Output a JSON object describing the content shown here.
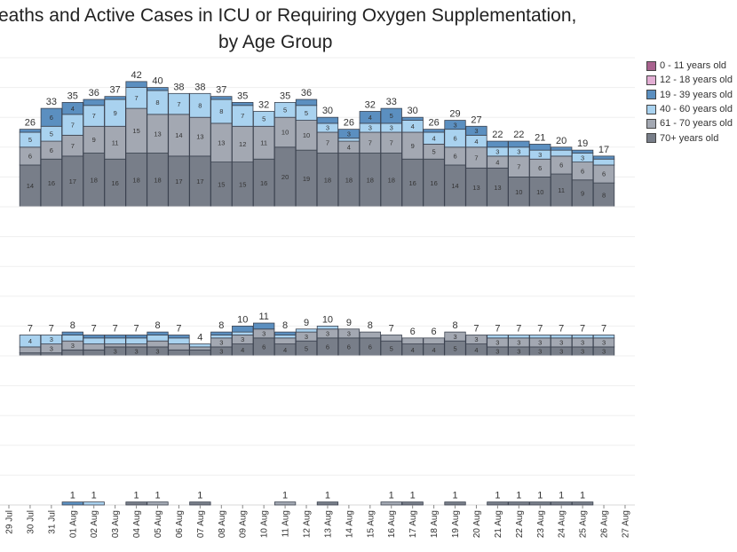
{
  "title": {
    "line1": "eaths and Active Cases in ICU or Requiring Oxygen Supplementation,",
    "line2": "by Age Group"
  },
  "legend": [
    {
      "label": "0 - 11 years old",
      "color": "#a8628e"
    },
    {
      "label": "12 - 18 years old",
      "color": "#e2aed3"
    },
    {
      "label": "19 - 39 years old",
      "color": "#5b8fc0"
    },
    {
      "label": "40 - 60 years old",
      "color": "#a9d2ef"
    },
    {
      "label": "61 - 70 years old",
      "color": "#a3a8b2"
    },
    {
      "label": "70+ years old",
      "color": "#787e89"
    }
  ],
  "chart_data": [
    {
      "type": "bar",
      "stacked": true,
      "panel": "top",
      "ylim": [
        0,
        50
      ],
      "grid": true,
      "categories": [
        "30 Jul",
        "31 Jul",
        "01 Aug",
        "02 Aug",
        "03 Aug",
        "04 Aug",
        "05 Aug",
        "06 Aug",
        "07 Aug",
        "08 Aug",
        "09 Aug",
        "10 Aug",
        "11 Aug",
        "12 Aug",
        "13 Aug",
        "14 Aug",
        "15 Aug",
        "16 Aug",
        "17 Aug",
        "18 Aug",
        "19 Aug",
        "20 Aug",
        "21 Aug",
        "22 Aug",
        "23 Aug",
        "24 Aug",
        "25 Aug",
        "26 Aug"
      ],
      "series": [
        {
          "name": "70+ years old",
          "values": [
            14,
            16,
            17,
            18,
            16,
            18,
            18,
            17,
            17,
            15,
            15,
            16,
            20,
            19,
            18,
            18,
            18,
            18,
            16,
            16,
            14,
            13,
            13,
            10,
            10,
            11,
            9,
            8
          ]
        },
        {
          "name": "61 - 70 years old",
          "values": [
            6,
            6,
            7,
            9,
            11,
            15,
            13,
            14,
            13,
            13,
            12,
            11,
            10,
            10,
            7,
            4,
            7,
            7,
            9,
            5,
            6,
            7,
            4,
            7,
            6,
            6,
            6,
            6
          ]
        },
        {
          "name": "40 - 60 years old",
          "values": [
            5,
            5,
            7,
            7,
            9,
            7,
            8,
            7,
            8,
            8,
            7,
            5,
            5,
            5,
            3,
            1,
            3,
            3,
            4,
            4,
            6,
            4,
            3,
            3,
            3,
            2,
            3,
            2
          ]
        },
        {
          "name": "19 - 39 years old",
          "values": [
            1,
            6,
            4,
            2,
            1,
            2,
            1,
            0,
            0,
            1,
            1,
            0,
            0,
            2,
            2,
            3,
            4,
            5,
            1,
            1,
            3,
            3,
            2,
            2,
            2,
            1,
            1,
            1
          ]
        }
      ]
    },
    {
      "type": "bar",
      "stacked": true,
      "panel": "middle",
      "ylim": [
        0,
        50
      ],
      "grid": true,
      "categories": [
        "30 Jul",
        "31 Jul",
        "01 Aug",
        "02 Aug",
        "03 Aug",
        "04 Aug",
        "05 Aug",
        "06 Aug",
        "07 Aug",
        "08 Aug",
        "09 Aug",
        "10 Aug",
        "11 Aug",
        "12 Aug",
        "13 Aug",
        "14 Aug",
        "15 Aug",
        "16 Aug",
        "17 Aug",
        "18 Aug",
        "19 Aug",
        "20 Aug",
        "21 Aug",
        "22 Aug",
        "23 Aug",
        "24 Aug",
        "25 Aug",
        "26 Aug"
      ],
      "series": [
        {
          "name": "70+ years old",
          "values": [
            1,
            1,
            2,
            2,
            3,
            3,
            3,
            2,
            2,
            3,
            4,
            6,
            4,
            5,
            6,
            6,
            6,
            5,
            4,
            4,
            5,
            4,
            3,
            3,
            3,
            3,
            3,
            3
          ]
        },
        {
          "name": "61 - 70 years old",
          "values": [
            2,
            3,
            3,
            2,
            1,
            1,
            2,
            2,
            1,
            3,
            3,
            3,
            2,
            3,
            3,
            3,
            2,
            2,
            2,
            2,
            3,
            3,
            3,
            3,
            3,
            3,
            3,
            3
          ]
        },
        {
          "name": "40 - 60 years old",
          "values": [
            4,
            3,
            2,
            2,
            2,
            2,
            2,
            2,
            1,
            1,
            1,
            0,
            1,
            1,
            1,
            0,
            0,
            0,
            0,
            0,
            0,
            0,
            1,
            1,
            1,
            1,
            1,
            1
          ]
        },
        {
          "name": "19 - 39 years old",
          "values": [
            0,
            0,
            1,
            1,
            1,
            1,
            1,
            1,
            0,
            1,
            2,
            2,
            1,
            0,
            0,
            0,
            0,
            0,
            0,
            0,
            0,
            0,
            0,
            0,
            0,
            0,
            0,
            0
          ]
        }
      ]
    },
    {
      "type": "bar",
      "stacked": true,
      "panel": "bottom",
      "ylim": [
        0,
        50
      ],
      "grid": true,
      "categories": [
        "30 Jul",
        "31 Jul",
        "01 Aug",
        "02 Aug",
        "03 Aug",
        "04 Aug",
        "05 Aug",
        "06 Aug",
        "07 Aug",
        "08 Aug",
        "09 Aug",
        "10 Aug",
        "11 Aug",
        "12 Aug",
        "13 Aug",
        "14 Aug",
        "15 Aug",
        "16 Aug",
        "17 Aug",
        "18 Aug",
        "19 Aug",
        "20 Aug",
        "21 Aug",
        "22 Aug",
        "23 Aug",
        "24 Aug",
        "25 Aug",
        "26 Aug"
      ],
      "series": [
        {
          "name": "70+ years old",
          "values": [
            0,
            0,
            0,
            0,
            0,
            1,
            0,
            0,
            1,
            0,
            0,
            0,
            0,
            0,
            1,
            0,
            0,
            0,
            1,
            0,
            1,
            0,
            1,
            1,
            1,
            1,
            1,
            0
          ]
        },
        {
          "name": "61 - 70 years old",
          "values": [
            0,
            0,
            0,
            0,
            0,
            0,
            1,
            0,
            0,
            0,
            0,
            0,
            1,
            0,
            0,
            0,
            0,
            1,
            0,
            0,
            0,
            0,
            0,
            0,
            0,
            0,
            0,
            0
          ]
        },
        {
          "name": "40 - 60 years old",
          "values": [
            0,
            0,
            0,
            1,
            0,
            0,
            0,
            0,
            0,
            0,
            0,
            0,
            0,
            0,
            0,
            0,
            0,
            0,
            0,
            0,
            0,
            0,
            0,
            0,
            0,
            0,
            0,
            0
          ]
        },
        {
          "name": "19 - 39 years old",
          "values": [
            0,
            0,
            1,
            0,
            0,
            0,
            0,
            0,
            0,
            0,
            0,
            0,
            0,
            0,
            0,
            0,
            0,
            0,
            0,
            0,
            0,
            0,
            0,
            0,
            0,
            0,
            0,
            0
          ]
        }
      ]
    }
  ],
  "x_ticks": [
    "29 Jul",
    "30 Jul",
    "31 Jul",
    "01 Aug",
    "02 Aug",
    "03 Aug",
    "04 Aug",
    "05 Aug",
    "06 Aug",
    "07 Aug",
    "08 Aug",
    "09 Aug",
    "10 Aug",
    "11 Aug",
    "12 Aug",
    "13 Aug",
    "14 Aug",
    "15 Aug",
    "16 Aug",
    "17 Aug",
    "18 Aug",
    "19 Aug",
    "20 Aug",
    "21 Aug",
    "22 Aug",
    "23 Aug",
    "24 Aug",
    "25 Aug",
    "26 Aug",
    "27 Aug"
  ]
}
